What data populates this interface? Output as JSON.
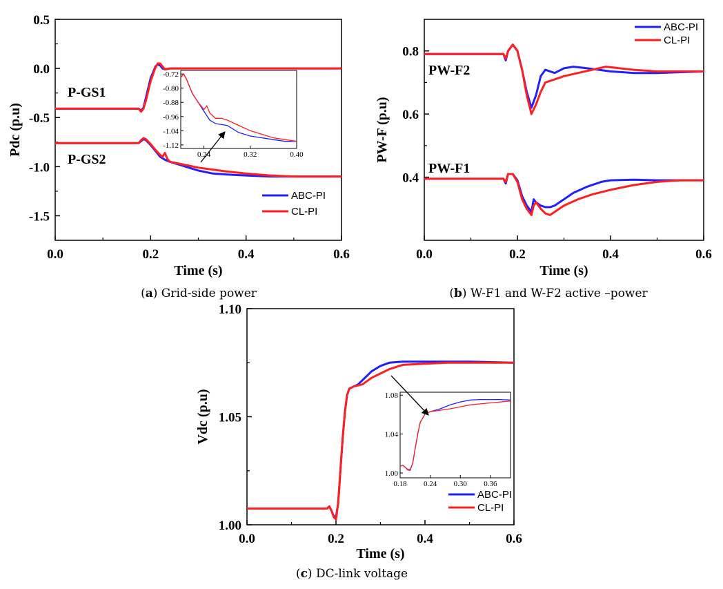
{
  "colors": {
    "abc": "#1f1fff",
    "cl": "#ff1f1f",
    "axis": "#000000"
  },
  "chart_data": [
    {
      "id": "a",
      "type": "line",
      "title": "",
      "xlabel": "Time (s)",
      "ylabel": "Pdc (p.u)",
      "xlim": [
        0,
        0.6
      ],
      "ylim": [
        -1.75,
        0.5
      ],
      "xticks": [
        0.0,
        0.2,
        0.4,
        0.6
      ],
      "xtick_labels": [
        "0.0",
        "0.2",
        "0.4",
        "0.6"
      ],
      "yticks": [
        0.5,
        0.0,
        -0.5,
        -1.0,
        -1.5
      ],
      "ytick_labels": [
        "0.5",
        "0.0",
        "-0.5",
        "-1.0",
        "-1.5"
      ],
      "legend": [
        "ABC-PI",
        "CL-PI"
      ],
      "legend_position": "bottom-right",
      "annotations": [
        "P-GS1",
        "P-GS2"
      ],
      "caption_letter": "a",
      "caption_text": " Grid-side power",
      "series": [
        {
          "name": "ABC-PI P-GS1",
          "x": [
            0,
            0.175,
            0.18,
            0.185,
            0.19,
            0.2,
            0.21,
            0.215,
            0.22,
            0.225,
            0.23,
            0.24,
            0.6
          ],
          "y": [
            -0.41,
            -0.41,
            -0.43,
            -0.4,
            -0.3,
            -0.1,
            0.02,
            0.04,
            0.03,
            0.0,
            -0.01,
            0.0,
            0.0
          ]
        },
        {
          "name": "CL-PI P-GS1",
          "x": [
            0,
            0.175,
            0.18,
            0.185,
            0.19,
            0.2,
            0.21,
            0.215,
            0.22,
            0.225,
            0.23,
            0.24,
            0.6
          ],
          "y": [
            -0.41,
            -0.41,
            -0.44,
            -0.41,
            -0.33,
            -0.13,
            0.01,
            0.05,
            0.05,
            0.02,
            -0.01,
            0.0,
            0.0
          ]
        },
        {
          "name": "ABC-PI P-GS2",
          "x": [
            0,
            0.175,
            0.18,
            0.185,
            0.19,
            0.2,
            0.21,
            0.22,
            0.23,
            0.24,
            0.26,
            0.28,
            0.3,
            0.33,
            0.36,
            0.4,
            0.45,
            0.5,
            0.6
          ],
          "y": [
            -0.76,
            -0.76,
            -0.74,
            -0.72,
            -0.73,
            -0.78,
            -0.84,
            -0.9,
            -0.93,
            -0.95,
            -0.98,
            -1.01,
            -1.04,
            -1.07,
            -1.08,
            -1.09,
            -1.1,
            -1.1,
            -1.1
          ]
        },
        {
          "name": "CL-PI P-GS2",
          "x": [
            0,
            0.175,
            0.18,
            0.185,
            0.19,
            0.2,
            0.21,
            0.22,
            0.225,
            0.23,
            0.235,
            0.24,
            0.26,
            0.28,
            0.3,
            0.33,
            0.36,
            0.4,
            0.45,
            0.5,
            0.6
          ],
          "y": [
            -0.76,
            -0.76,
            -0.73,
            -0.71,
            -0.72,
            -0.77,
            -0.83,
            -0.88,
            -0.9,
            -0.86,
            -0.92,
            -0.95,
            -0.97,
            -0.99,
            -1.01,
            -1.03,
            -1.05,
            -1.07,
            -1.09,
            -1.1,
            -1.1
          ]
        }
      ],
      "inset": {
        "xlim": [
          0.2,
          0.4
        ],
        "ylim": [
          -1.14,
          -0.7
        ],
        "xticks": [
          0.24,
          0.32,
          0.4
        ],
        "xtick_labels": [
          "0.24",
          "0.32",
          "0.40"
        ],
        "yticks": [
          -0.72,
          -0.8,
          -0.88,
          -0.96,
          -1.04,
          -1.12
        ],
        "ytick_labels": [
          "-0.72",
          "-0.80",
          "-0.88",
          "-0.96",
          "-1.04",
          "-1.12"
        ],
        "series": [
          {
            "name": "ABC-PI",
            "x": [
              0.2,
              0.205,
              0.21,
              0.22,
              0.23,
              0.24,
              0.25,
              0.26,
              0.28,
              0.3,
              0.32,
              0.34,
              0.36,
              0.38,
              0.4
            ],
            "y": [
              -0.74,
              -0.72,
              -0.75,
              -0.83,
              -0.88,
              -0.93,
              -0.98,
              -1.0,
              -1.01,
              -1.05,
              -1.07,
              -1.08,
              -1.09,
              -1.1,
              -1.1
            ]
          },
          {
            "name": "CL-PI",
            "x": [
              0.2,
              0.205,
              0.21,
              0.22,
              0.23,
              0.24,
              0.245,
              0.25,
              0.26,
              0.27,
              0.28,
              0.3,
              0.32,
              0.34,
              0.36,
              0.38,
              0.4
            ],
            "y": [
              -0.74,
              -0.72,
              -0.75,
              -0.83,
              -0.88,
              -0.92,
              -0.9,
              -0.94,
              -0.97,
              -0.97,
              -0.98,
              -1.01,
              -1.04,
              -1.06,
              -1.08,
              -1.09,
              -1.1
            ]
          }
        ]
      }
    },
    {
      "id": "b",
      "type": "line",
      "title": "",
      "xlabel": "Time (s)",
      "ylabel": "PW-F (p.u)",
      "xlim": [
        0,
        0.6
      ],
      "ylim": [
        0.2,
        0.9
      ],
      "xticks": [
        0.0,
        0.2,
        0.4,
        0.6
      ],
      "xtick_labels": [
        "0.0",
        "0.2",
        "0.4",
        "0.6"
      ],
      "yticks": [
        0.8,
        0.6,
        0.4
      ],
      "ytick_labels": [
        "0.8",
        "0.6",
        "0.4"
      ],
      "legend": [
        "ABC-PI",
        "CL-PI"
      ],
      "legend_position": "top-right",
      "annotations": [
        "PW-F2",
        "PW-F1"
      ],
      "caption_letter": "b",
      "caption_text": " W-F1 and W-F2 active –power",
      "series": [
        {
          "name": "ABC-PI PW-F2",
          "x": [
            0,
            0.17,
            0.175,
            0.18,
            0.19,
            0.2,
            0.21,
            0.22,
            0.23,
            0.24,
            0.25,
            0.26,
            0.28,
            0.3,
            0.32,
            0.35,
            0.4,
            0.45,
            0.5,
            0.6
          ],
          "y": [
            0.79,
            0.79,
            0.77,
            0.8,
            0.82,
            0.8,
            0.74,
            0.67,
            0.62,
            0.66,
            0.72,
            0.74,
            0.73,
            0.745,
            0.75,
            0.745,
            0.735,
            0.73,
            0.73,
            0.735
          ]
        },
        {
          "name": "CL-PI PW-F2",
          "x": [
            0,
            0.17,
            0.175,
            0.18,
            0.19,
            0.2,
            0.21,
            0.22,
            0.23,
            0.24,
            0.25,
            0.26,
            0.28,
            0.3,
            0.33,
            0.36,
            0.39,
            0.42,
            0.45,
            0.5,
            0.6
          ],
          "y": [
            0.79,
            0.79,
            0.775,
            0.8,
            0.82,
            0.8,
            0.74,
            0.66,
            0.6,
            0.63,
            0.67,
            0.7,
            0.71,
            0.72,
            0.73,
            0.74,
            0.75,
            0.745,
            0.74,
            0.735,
            0.735
          ]
        },
        {
          "name": "ABC-PI PW-F1",
          "x": [
            0,
            0.17,
            0.175,
            0.18,
            0.19,
            0.2,
            0.21,
            0.22,
            0.23,
            0.235,
            0.24,
            0.25,
            0.26,
            0.27,
            0.28,
            0.3,
            0.32,
            0.35,
            0.38,
            0.4,
            0.45,
            0.5,
            0.6
          ],
          "y": [
            0.395,
            0.395,
            0.38,
            0.41,
            0.41,
            0.39,
            0.34,
            0.31,
            0.29,
            0.33,
            0.32,
            0.31,
            0.305,
            0.305,
            0.31,
            0.33,
            0.35,
            0.37,
            0.385,
            0.39,
            0.392,
            0.39,
            0.39
          ]
        },
        {
          "name": "CL-PI PW-F1",
          "x": [
            0,
            0.17,
            0.175,
            0.18,
            0.19,
            0.2,
            0.21,
            0.22,
            0.23,
            0.235,
            0.24,
            0.25,
            0.26,
            0.27,
            0.28,
            0.3,
            0.33,
            0.36,
            0.4,
            0.45,
            0.5,
            0.55,
            0.6
          ],
          "y": [
            0.395,
            0.395,
            0.385,
            0.41,
            0.41,
            0.385,
            0.33,
            0.3,
            0.28,
            0.31,
            0.32,
            0.3,
            0.285,
            0.28,
            0.29,
            0.31,
            0.33,
            0.345,
            0.36,
            0.375,
            0.385,
            0.39,
            0.39
          ]
        }
      ]
    },
    {
      "id": "c",
      "type": "line",
      "title": "",
      "xlabel": "Time (s)",
      "ylabel": "Vdc (p.u)",
      "xlim": [
        0,
        0.6
      ],
      "ylim": [
        1.0,
        1.1
      ],
      "xticks": [
        0.0,
        0.2,
        0.4,
        0.6
      ],
      "xtick_labels": [
        "0.0",
        "0.2",
        "0.4",
        "0.6"
      ],
      "yticks": [
        1.1,
        1.05,
        1.0
      ],
      "ytick_labels": [
        "1.10",
        "1.05",
        "1.00"
      ],
      "legend": [
        "ABC-PI",
        "CL-PI"
      ],
      "legend_position": "bottom-right",
      "annotations": [],
      "caption_letter": "c",
      "caption_text": " DC-link voltage",
      "series": [
        {
          "name": "ABC-PI",
          "x": [
            0,
            0.18,
            0.185,
            0.19,
            0.195,
            0.2,
            0.205,
            0.21,
            0.215,
            0.22,
            0.225,
            0.23,
            0.24,
            0.25,
            0.26,
            0.28,
            0.3,
            0.32,
            0.35,
            0.4,
            0.5,
            0.6
          ],
          "y": [
            1.0075,
            1.0075,
            1.0085,
            1.0065,
            1.004,
            1.0035,
            1.01,
            1.025,
            1.04,
            1.052,
            1.06,
            1.063,
            1.064,
            1.065,
            1.067,
            1.071,
            1.0735,
            1.075,
            1.0755,
            1.0755,
            1.0755,
            1.075
          ]
        },
        {
          "name": "CL-PI",
          "x": [
            0,
            0.18,
            0.185,
            0.19,
            0.195,
            0.2,
            0.205,
            0.21,
            0.215,
            0.22,
            0.225,
            0.23,
            0.24,
            0.25,
            0.26,
            0.28,
            0.3,
            0.32,
            0.35,
            0.4,
            0.45,
            0.5,
            0.6
          ],
          "y": [
            1.0075,
            1.0075,
            1.0085,
            1.0065,
            1.0035,
            1.0025,
            1.01,
            1.025,
            1.04,
            1.052,
            1.06,
            1.063,
            1.064,
            1.0645,
            1.065,
            1.068,
            1.07,
            1.072,
            1.074,
            1.0745,
            1.075,
            1.075,
            1.075
          ]
        }
      ],
      "inset": {
        "xlim": [
          0.18,
          0.4
        ],
        "ylim": [
          0.995,
          1.083
        ],
        "xticks": [
          0.18,
          0.24,
          0.3,
          0.36
        ],
        "xtick_labels": [
          "0.18",
          "0.24",
          "0.30",
          "0.36"
        ],
        "yticks": [
          1.08,
          1.04,
          1.0
        ],
        "ytick_labels": [
          "1.08",
          "1.04",
          "1.00"
        ],
        "series": [
          {
            "name": "ABC-PI",
            "x": [
              0.18,
              0.185,
              0.19,
              0.195,
              0.2,
              0.205,
              0.21,
              0.215,
              0.22,
              0.23,
              0.24,
              0.26,
              0.28,
              0.3,
              0.32,
              0.34,
              0.36,
              0.38,
              0.4
            ],
            "y": [
              1.007,
              1.008,
              1.006,
              1.0035,
              1.0035,
              1.01,
              1.025,
              1.04,
              1.052,
              1.061,
              1.063,
              1.066,
              1.07,
              1.073,
              1.075,
              1.0755,
              1.0755,
              1.0755,
              1.075
            ]
          },
          {
            "name": "CL-PI",
            "x": [
              0.18,
              0.185,
              0.19,
              0.195,
              0.2,
              0.205,
              0.21,
              0.215,
              0.22,
              0.23,
              0.24,
              0.26,
              0.28,
              0.3,
              0.32,
              0.34,
              0.36,
              0.38,
              0.4
            ],
            "y": [
              1.007,
              1.008,
              1.006,
              1.003,
              1.0025,
              1.01,
              1.025,
              1.04,
              1.052,
              1.061,
              1.063,
              1.0645,
              1.066,
              1.068,
              1.07,
              1.071,
              1.072,
              1.073,
              1.074
            ]
          }
        ]
      }
    }
  ]
}
